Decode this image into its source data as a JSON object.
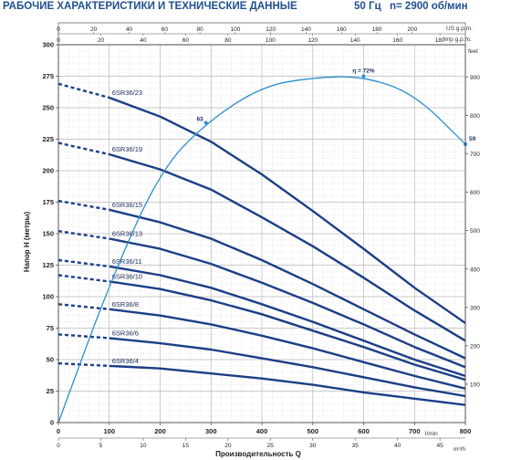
{
  "header": {
    "title": "РАБОЧИЕ ХАРАКТЕРИСТИКИ И ТЕХНИЧЕСКИЕ ДАННЫЕ",
    "frequency": "50 Гц",
    "speed": "n= 2900 об/мин"
  },
  "chart_data": {
    "type": "line",
    "xlabel": "Производительность Q",
    "ylabel": "Напор H (метры)",
    "x_unit": "l/min",
    "xlim": [
      0,
      800
    ],
    "ylim": [
      0,
      300
    ],
    "x_ticks": [
      0,
      100,
      200,
      300,
      400,
      500,
      600,
      700,
      800
    ],
    "y_ticks": [
      0,
      25,
      50,
      75,
      100,
      125,
      150,
      175,
      200,
      225,
      250,
      275,
      300
    ],
    "right_axis": {
      "unit": "feet",
      "ticks": [
        100,
        200,
        300,
        400,
        500,
        600,
        700,
        800,
        900
      ]
    },
    "top_axes": [
      {
        "unit": "US g.p.m.",
        "ticks": [
          0,
          20,
          40,
          60,
          80,
          100,
          120,
          140,
          160,
          180,
          200
        ]
      },
      {
        "unit": "Imp g.p.m.",
        "ticks": [
          0,
          20,
          40,
          60,
          80,
          100,
          120,
          140,
          160,
          180
        ]
      }
    ],
    "bottom_axis": {
      "unit": "m³/h",
      "ticks": [
        0,
        5,
        10,
        15,
        20,
        25,
        30,
        35,
        40,
        45
      ]
    },
    "grid": true,
    "series": [
      {
        "name": "6SR36/23",
        "x": [
          0,
          100,
          200,
          300,
          400,
          500,
          600,
          700,
          800
        ],
        "y": [
          269,
          258,
          243,
          223,
          197,
          168,
          138,
          107,
          79
        ]
      },
      {
        "name": "6SR36/19",
        "x": [
          0,
          100,
          200,
          300,
          400,
          500,
          600,
          700,
          800
        ],
        "y": [
          222,
          213,
          201,
          185,
          163,
          140,
          115,
          89,
          65
        ]
      },
      {
        "name": "6SR36/15",
        "x": [
          0,
          100,
          200,
          300,
          400,
          500,
          600,
          700,
          800
        ],
        "y": [
          176,
          169,
          159,
          146,
          129,
          110,
          90,
          70,
          51
        ]
      },
      {
        "name": "6SR36/13",
        "x": [
          0,
          100,
          200,
          300,
          400,
          500,
          600,
          700,
          800
        ],
        "y": [
          152,
          146,
          138,
          126,
          111,
          95,
          78,
          60,
          44
        ]
      },
      {
        "name": "6SR36/11",
        "x": [
          0,
          100,
          200,
          300,
          400,
          500,
          600,
          700,
          800
        ],
        "y": [
          129,
          124,
          117,
          107,
          94,
          80,
          65,
          50,
          37
        ]
      },
      {
        "name": "6SR36/10",
        "x": [
          0,
          100,
          200,
          300,
          400,
          500,
          600,
          700,
          800
        ],
        "y": [
          117,
          112,
          106,
          97,
          86,
          73,
          60,
          46,
          34
        ]
      },
      {
        "name": "6SR36/8",
        "x": [
          0,
          100,
          200,
          300,
          400,
          500,
          600,
          700,
          800
        ],
        "y": [
          94,
          90,
          85,
          78,
          69,
          59,
          48,
          37,
          27
        ]
      },
      {
        "name": "6SR36/6",
        "x": [
          0,
          100,
          200,
          300,
          400,
          500,
          600,
          700,
          800
        ],
        "y": [
          70,
          67,
          63,
          58,
          51,
          44,
          36,
          28,
          21
        ]
      },
      {
        "name": "6SR36/4",
        "x": [
          0,
          100,
          200,
          300,
          400,
          500,
          600,
          700,
          800
        ],
        "y": [
          47,
          45,
          43,
          39,
          35,
          30,
          24,
          19,
          14
        ]
      }
    ],
    "efficiency_curve": {
      "x": [
        0,
        100,
        200,
        290,
        400,
        500,
        600,
        700,
        800
      ],
      "y": [
        0,
        110,
        200,
        238,
        267,
        274,
        275,
        261,
        221
      ],
      "labels": [
        {
          "text": "63",
          "x": 290,
          "y": 238
        },
        {
          "text": "η = 72%",
          "x": 600,
          "y": 275
        },
        {
          "text": "59",
          "x": 800,
          "y": 221
        }
      ]
    }
  }
}
